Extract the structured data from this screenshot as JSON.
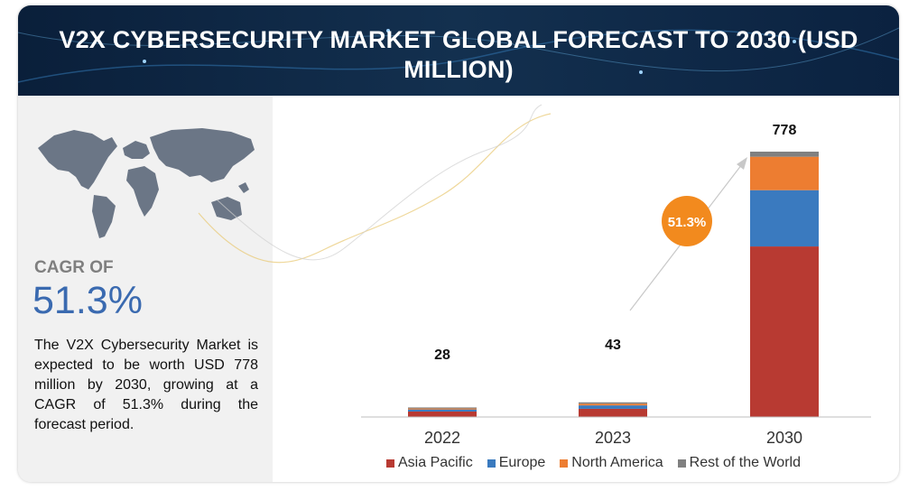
{
  "title": "V2X CYBERSECURITY MARKET GLOBAL FORECAST TO 2030 (USD MILLION)",
  "cagr": {
    "label": "CAGR OF",
    "value": "51.3%",
    "bubble": "51.3%"
  },
  "description": "The V2X Cybersecurity Market is expected to be worth USD 778 million by 2030, growing at a CAGR of 51.3% during the forecast period.",
  "colors": {
    "asia_pacific": "#b83a32",
    "europe": "#3a7abf",
    "north_america": "#ed7d31",
    "rest_of_world": "#808080",
    "bubble": "#f28a1e",
    "accent": "#3a6ab0"
  },
  "chart_data": {
    "type": "bar",
    "stacked": true,
    "categories": [
      "2022",
      "2023",
      "2030"
    ],
    "totals": [
      "28",
      "43",
      "778"
    ],
    "series": [
      {
        "name": "Asia Pacific",
        "values": [
          16,
          24,
          500
        ]
      },
      {
        "name": "Europe",
        "values": [
          6,
          10,
          165
        ]
      },
      {
        "name": "North America",
        "values": [
          3,
          5,
          98
        ]
      },
      {
        "name": "Rest of the World",
        "values": [
          3,
          4,
          15
        ]
      }
    ],
    "ylim": [
      0,
      778
    ],
    "grid": false,
    "legend_position": "bottom"
  }
}
